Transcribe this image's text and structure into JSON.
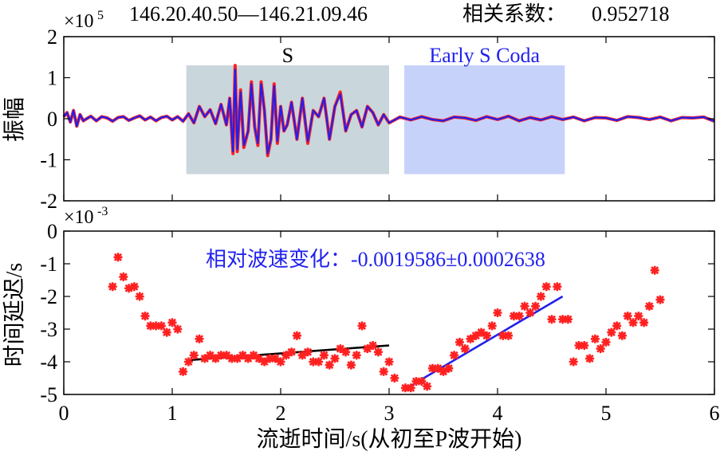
{
  "header": {
    "station_pair": "146.20.40.50—146.21.09.46",
    "correlation_label": "相关系数：",
    "correlation_value": "0.952718"
  },
  "chart_data": [
    {
      "type": "line",
      "panel": "top",
      "ylabel": "振幅",
      "exponent_base": "×10",
      "exponent_power": "5",
      "xlim": [
        0,
        6
      ],
      "ylim": [
        -2,
        2
      ],
      "yticks": [
        "2",
        "1",
        "0",
        "-1",
        "-2"
      ],
      "grid": false,
      "windows": [
        {
          "label": "S",
          "x_start": 1.13,
          "x_end": 3.0,
          "y_start": -1.35,
          "y_end": 1.3,
          "color": "#c9d6dc"
        },
        {
          "label": "Early S Coda",
          "x_start": 3.14,
          "x_end": 4.62,
          "y_start": -1.35,
          "y_end": 1.3,
          "color": "#c7d2fa"
        }
      ],
      "series": [
        {
          "color": "#ff2020",
          "x": [
            0.0,
            0.03,
            0.06,
            0.09,
            0.12,
            0.15,
            0.18,
            0.21,
            0.25,
            0.3,
            0.35,
            0.4,
            0.45,
            0.5,
            0.55,
            0.6,
            0.65,
            0.7,
            0.75,
            0.8,
            0.85,
            0.9,
            0.95,
            1.0,
            1.05,
            1.1,
            1.15,
            1.2,
            1.25,
            1.3,
            1.35,
            1.4,
            1.45,
            1.5,
            1.53,
            1.56,
            1.58,
            1.6,
            1.63,
            1.66,
            1.7,
            1.73,
            1.76,
            1.79,
            1.82,
            1.85,
            1.88,
            1.91,
            1.94,
            1.97,
            2.0,
            2.03,
            2.06,
            2.1,
            2.15,
            2.2,
            2.25,
            2.3,
            2.35,
            2.4,
            2.45,
            2.5,
            2.55,
            2.6,
            2.65,
            2.7,
            2.75,
            2.8,
            2.85,
            2.9,
            2.95,
            3.0,
            3.1,
            3.2,
            3.3,
            3.4,
            3.5,
            3.6,
            3.7,
            3.8,
            3.9,
            4.0,
            4.1,
            4.2,
            4.3,
            4.4,
            4.5,
            4.6,
            4.7,
            4.8,
            4.9,
            5.0,
            5.1,
            5.2,
            5.3,
            5.4,
            5.5,
            5.6,
            5.7,
            5.8,
            5.9,
            6.0
          ],
          "values": [
            0.05,
            0.15,
            -0.08,
            0.2,
            -0.18,
            0.1,
            -0.05,
            0.0,
            0.06,
            -0.05,
            0.05,
            0.02,
            -0.06,
            0.03,
            0.05,
            -0.04,
            0.02,
            0.07,
            -0.03,
            0.04,
            -0.05,
            0.03,
            0.06,
            -0.03,
            0.05,
            -0.06,
            0.12,
            -0.1,
            0.3,
            0.05,
            0.22,
            -0.12,
            0.35,
            -0.15,
            0.5,
            -0.85,
            1.3,
            -0.8,
            0.7,
            -0.7,
            -0.3,
            0.9,
            -0.2,
            -0.65,
            0.9,
            0.2,
            -0.9,
            -0.5,
            0.85,
            -0.6,
            0.3,
            -0.3,
            -0.15,
            0.4,
            -0.5,
            0.5,
            -0.6,
            0.2,
            0.05,
            0.5,
            -0.5,
            0.3,
            0.65,
            -0.3,
            0.1,
            0.2,
            -0.2,
            0.3,
            0.15,
            -0.15,
            0.1,
            -0.1,
            0.04,
            -0.03,
            0.05,
            -0.02,
            -0.05,
            0.04,
            0.02,
            -0.04,
            0.05,
            -0.02,
            0.06,
            -0.05,
            0.03,
            -0.03,
            0.05,
            -0.02,
            0.04,
            -0.05,
            0.03,
            0.02,
            -0.04,
            0.05,
            0.03,
            -0.02,
            0.04,
            -0.05,
            0.03,
            0.02,
            0.04,
            -0.06
          ]
        },
        {
          "color": "#2020ee",
          "x": [
            0.0,
            0.03,
            0.06,
            0.09,
            0.12,
            0.15,
            0.18,
            0.21,
            0.25,
            0.3,
            0.35,
            0.4,
            0.45,
            0.5,
            0.55,
            0.6,
            0.65,
            0.7,
            0.75,
            0.8,
            0.85,
            0.9,
            0.95,
            1.0,
            1.05,
            1.1,
            1.15,
            1.2,
            1.25,
            1.3,
            1.35,
            1.4,
            1.45,
            1.5,
            1.53,
            1.56,
            1.58,
            1.6,
            1.63,
            1.66,
            1.7,
            1.73,
            1.76,
            1.79,
            1.82,
            1.85,
            1.88,
            1.91,
            1.94,
            1.97,
            2.0,
            2.03,
            2.06,
            2.1,
            2.15,
            2.2,
            2.25,
            2.3,
            2.35,
            2.4,
            2.45,
            2.5,
            2.55,
            2.6,
            2.65,
            2.7,
            2.75,
            2.8,
            2.85,
            2.9,
            2.95,
            3.0,
            3.1,
            3.2,
            3.3,
            3.4,
            3.5,
            3.6,
            3.7,
            3.8,
            3.9,
            4.0,
            4.1,
            4.2,
            4.3,
            4.4,
            4.5,
            4.6,
            4.7,
            4.8,
            4.9,
            5.0,
            5.1,
            5.2,
            5.3,
            5.4,
            5.5,
            5.6,
            5.7,
            5.8,
            5.9,
            6.0
          ],
          "values": [
            0.05,
            0.15,
            -0.08,
            0.2,
            -0.18,
            0.1,
            -0.05,
            0.0,
            0.06,
            -0.05,
            0.05,
            0.02,
            -0.06,
            0.03,
            0.05,
            -0.04,
            0.02,
            0.07,
            -0.03,
            0.04,
            -0.05,
            0.03,
            0.06,
            -0.03,
            0.05,
            -0.06,
            0.12,
            -0.1,
            0.3,
            0.05,
            0.22,
            -0.12,
            0.35,
            -0.15,
            0.5,
            -0.8,
            1.2,
            -0.75,
            0.65,
            -0.65,
            -0.3,
            0.85,
            -0.2,
            -0.6,
            0.85,
            0.2,
            -0.85,
            -0.5,
            0.8,
            -0.55,
            0.3,
            -0.3,
            -0.15,
            0.4,
            -0.5,
            0.5,
            -0.55,
            0.2,
            0.05,
            0.5,
            -0.5,
            0.3,
            0.6,
            -0.3,
            0.1,
            0.2,
            -0.2,
            0.3,
            0.15,
            -0.15,
            0.1,
            -0.1,
            0.04,
            -0.03,
            0.05,
            -0.02,
            -0.05,
            0.04,
            0.02,
            -0.04,
            0.05,
            -0.02,
            0.06,
            -0.05,
            0.03,
            -0.03,
            0.05,
            -0.02,
            0.04,
            -0.05,
            0.03,
            0.02,
            -0.04,
            0.05,
            0.03,
            -0.02,
            0.04,
            -0.05,
            0.03,
            0.02,
            0.04,
            -0.06
          ]
        }
      ]
    },
    {
      "type": "scatter",
      "panel": "bottom",
      "ylabel": "时间延迟/s",
      "xlabel": "流逝时间/s(从初至P波开始)",
      "exponent_base": "×10",
      "exponent_power": "-3",
      "xlim": [
        0,
        6
      ],
      "ylim": [
        -5,
        0
      ],
      "xticks": [
        "0",
        "1",
        "2",
        "3",
        "4",
        "5",
        "6"
      ],
      "yticks": [
        "0",
        "-1",
        "-2",
        "-3",
        "-4",
        "-5"
      ],
      "grid": false,
      "annotation": "相对波速变化：-0.0019586±0.0002638",
      "marker_color": "#ff2020",
      "points": {
        "x": [
          0.45,
          0.5,
          0.55,
          0.6,
          0.65,
          0.7,
          0.75,
          0.8,
          0.85,
          0.9,
          0.95,
          1.0,
          1.05,
          1.1,
          1.15,
          1.2,
          1.25,
          1.3,
          1.35,
          1.4,
          1.45,
          1.5,
          1.55,
          1.6,
          1.65,
          1.7,
          1.75,
          1.8,
          1.85,
          1.9,
          1.95,
          2.0,
          2.05,
          2.1,
          2.15,
          2.2,
          2.25,
          2.3,
          2.35,
          2.4,
          2.45,
          2.5,
          2.55,
          2.6,
          2.65,
          2.7,
          2.75,
          2.8,
          2.85,
          2.9,
          2.95,
          3.0,
          3.05,
          3.15,
          3.2,
          3.25,
          3.3,
          3.35,
          3.4,
          3.45,
          3.5,
          3.55,
          3.6,
          3.65,
          3.7,
          3.75,
          3.8,
          3.85,
          3.9,
          3.95,
          4.0,
          4.05,
          4.1,
          4.15,
          4.2,
          4.25,
          4.3,
          4.35,
          4.4,
          4.45,
          4.5,
          4.55,
          4.6,
          4.65,
          4.7,
          4.75,
          4.8,
          4.85,
          4.9,
          4.95,
          5.0,
          5.05,
          5.1,
          5.15,
          5.2,
          5.25,
          5.3,
          5.35,
          5.4,
          5.45,
          5.5
        ],
        "y": [
          -1.7,
          -0.8,
          -1.4,
          -1.75,
          -1.7,
          -2.0,
          -2.6,
          -2.9,
          -2.9,
          -2.9,
          -3.1,
          -2.8,
          -3.0,
          -4.3,
          -4.0,
          -3.8,
          -3.3,
          -3.9,
          -3.8,
          -3.9,
          -3.8,
          -3.8,
          -3.9,
          -3.9,
          -3.8,
          -3.9,
          -3.8,
          -3.9,
          -4.0,
          -3.9,
          -3.9,
          -4.0,
          -3.8,
          -3.7,
          -3.2,
          -3.8,
          -3.7,
          -4.0,
          -4.0,
          -3.8,
          -4.1,
          -3.9,
          -3.6,
          -3.7,
          -4.1,
          -3.8,
          -2.9,
          -3.6,
          -3.5,
          -3.7,
          -4.3,
          -4.0,
          -4.5,
          -4.8,
          -4.8,
          -4.6,
          -4.6,
          -4.75,
          -4.2,
          -4.2,
          -4.3,
          -4.2,
          -3.8,
          -3.4,
          -3.6,
          -3.3,
          -3.2,
          -3.1,
          -3.2,
          -2.9,
          -2.5,
          -3.2,
          -3.2,
          -2.6,
          -2.6,
          -2.3,
          -2.5,
          -2.3,
          -2.0,
          -1.7,
          -2.7,
          -1.7,
          -2.7,
          -2.7,
          -4.0,
          -3.5,
          -3.5,
          -3.9,
          -3.3,
          -3.6,
          -3.4,
          -3.1,
          -2.9,
          -3.2,
          -2.6,
          -2.8,
          -2.6,
          -2.8,
          -2.3,
          -1.2,
          -2.1
        ]
      },
      "fit_lines": [
        {
          "color": "#000000",
          "x": [
            1.15,
            3.0
          ],
          "y": [
            -3.95,
            -3.5
          ]
        },
        {
          "color": "#2020ee",
          "x": [
            3.14,
            4.6
          ],
          "y": [
            -4.85,
            -2.0
          ]
        }
      ]
    }
  ]
}
